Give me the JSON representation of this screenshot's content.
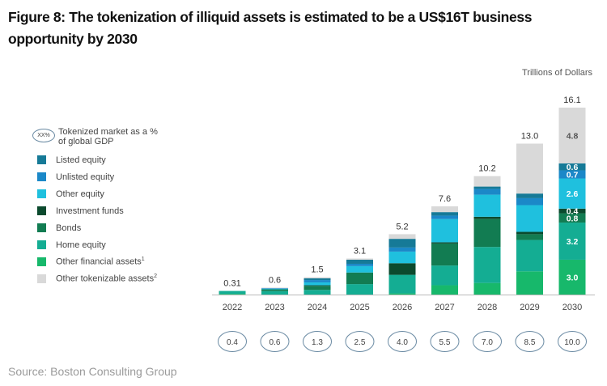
{
  "title": "Figure 8: The tokenization of illiquid assets is estimated to be a US$16T business opportunity by 2030",
  "source": "Source: Boston Consulting Group",
  "chart_data": {
    "type": "bar",
    "stacked": true,
    "unit_label": "Trillions of Dollars",
    "categories": [
      "2022",
      "2023",
      "2024",
      "2025",
      "2026",
      "2027",
      "2028",
      "2029",
      "2030"
    ],
    "totals": [
      "0.31",
      "0.6",
      "1.5",
      "3.1",
      "5.2",
      "7.6",
      "10.2",
      "13.0",
      "16.1"
    ],
    "gdp_legend": {
      "icon_text": "XX%",
      "label_line1": "Tokenized market as a %",
      "label_line2": "of global GDP"
    },
    "gdp_share": [
      "0.4",
      "0.6",
      "1.3",
      "2.5",
      "4.0",
      "5.5",
      "7.0",
      "8.5",
      "10.0"
    ],
    "series": [
      {
        "name": "Other financial assets",
        "sup": "1",
        "color": "#17b86b",
        "values": [
          0.06,
          0,
          0,
          0,
          0.1,
          0.8,
          1.0,
          2.0,
          3.0
        ]
      },
      {
        "name": "Home equity",
        "color": "#14ad93",
        "values": [
          0.25,
          0.3,
          0.4,
          0.9,
          1.6,
          1.7,
          3.1,
          2.7,
          3.2
        ]
      },
      {
        "name": "Bonds",
        "color": "#127c52",
        "values": [
          0,
          0.15,
          0.35,
          1.0,
          0,
          1.9,
          2.4,
          0.5,
          0.8
        ]
      },
      {
        "name": "Investment funds",
        "color": "#0b4a2e",
        "values": [
          0,
          0,
          0.05,
          0,
          1.0,
          0.1,
          0.2,
          0.2,
          0.4
        ]
      },
      {
        "name": "Other equity",
        "color": "#1fc0de",
        "values": [
          0,
          0.05,
          0.25,
          0.55,
          1.0,
          2.0,
          1.9,
          2.3,
          2.6
        ]
      },
      {
        "name": "Unlisted equity",
        "color": "#1b88c8",
        "values": [
          0,
          0.05,
          0.2,
          0.2,
          0.35,
          0.3,
          0.5,
          0.6,
          0.7
        ]
      },
      {
        "name": "Listed equity",
        "color": "#167a97",
        "values": [
          0,
          0,
          0.15,
          0.35,
          0.75,
          0.3,
          0.2,
          0.4,
          0.6
        ]
      },
      {
        "name": "Other tokenizable assets",
        "sup": "2",
        "color": "#d9d9d9",
        "values": [
          0,
          0.05,
          0.1,
          0.1,
          0.4,
          0.5,
          0.9,
          4.3,
          4.8
        ]
      }
    ],
    "segment_labels_2030": [
      "3.0",
      "3.2",
      "0.8",
      "0.4",
      "2.6",
      "0.7",
      "0.6",
      "4.8"
    ],
    "legend_order": [
      "Listed equity",
      "Unlisted equity",
      "Other equity",
      "Investment funds",
      "Bonds",
      "Home equity",
      "Other financial assets",
      "Other tokenizable assets"
    ],
    "ylim": [
      0,
      16.1
    ],
    "grid": false,
    "legend_position": "left"
  }
}
